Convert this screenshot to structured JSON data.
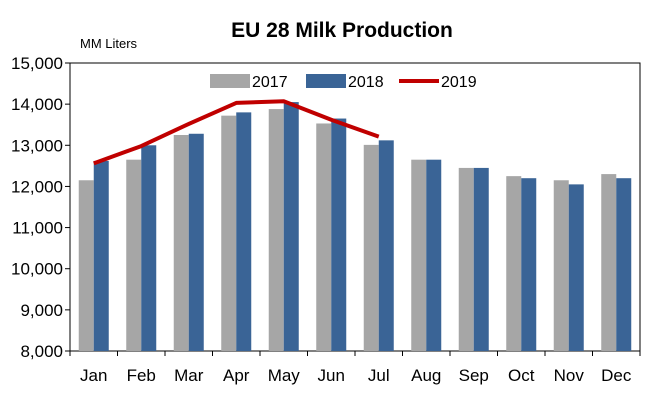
{
  "chart_data": {
    "type": "bar",
    "title": "EU 28 Milk Production",
    "unit_label": "MM Liters",
    "categories": [
      "Jan",
      "Feb",
      "Mar",
      "Apr",
      "May",
      "Jun",
      "Jul",
      "Aug",
      "Sep",
      "Oct",
      "Nov",
      "Dec"
    ],
    "series": [
      {
        "name": "2017",
        "type": "bar",
        "color": "#a6a6a6",
        "values": [
          12150,
          12650,
          13250,
          13720,
          13880,
          13530,
          13010,
          12650,
          12450,
          12250,
          12150,
          12300
        ]
      },
      {
        "name": "2018",
        "type": "bar",
        "color": "#3a6496",
        "values": [
          12620,
          13000,
          13280,
          13800,
          14050,
          13650,
          13120,
          12650,
          12450,
          12200,
          12050,
          12200
        ]
      },
      {
        "name": "2019",
        "type": "line",
        "color": "#c00000",
        "values": [
          12560,
          12980,
          13520,
          14030,
          14070,
          13620,
          13210,
          null,
          null,
          null,
          null,
          null
        ]
      }
    ],
    "ylim": [
      8000,
      15000
    ],
    "yticks": [
      "8,000",
      "9,000",
      "10,000",
      "11,000",
      "12,000",
      "13,000",
      "14,000",
      "15,000"
    ],
    "ytick_values": [
      8000,
      9000,
      10000,
      11000,
      12000,
      13000,
      14000,
      15000
    ],
    "grid": false,
    "legend_position": "top-center"
  }
}
